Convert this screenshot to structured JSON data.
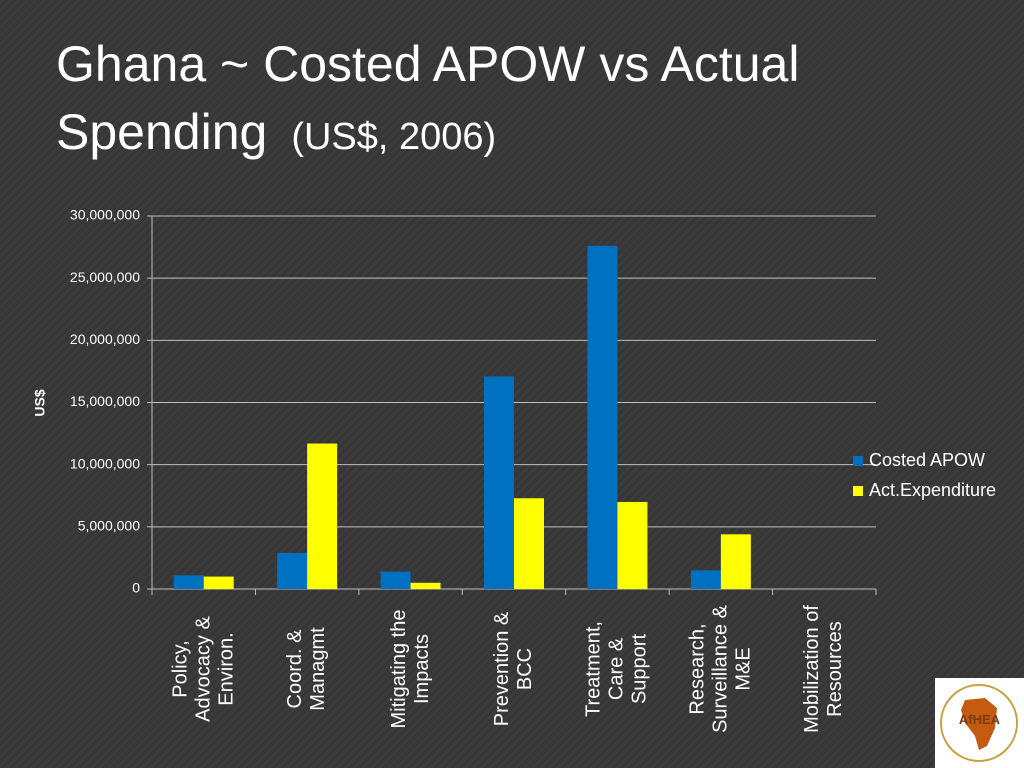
{
  "chart_data": {
    "type": "bar",
    "title": "Ghana ~ Costed APOW vs Actual Spending",
    "subtitle": "(US$, 2006)",
    "y_label": "US$",
    "categories": [
      "Policy, Advocacy & Environ.",
      "Coord. & Managmt",
      "Mitigating the Impacts",
      "Prevention & BCC",
      "Treatment, Care & Support",
      "Research, Surveillance & M&E",
      "Mobilization of Resources"
    ],
    "series": [
      {
        "name": "Costed APOW",
        "color": "#0070c0",
        "values": [
          1100000,
          2900000,
          1400000,
          17100000,
          27600000,
          1500000,
          0
        ]
      },
      {
        "name": "Act.Expenditure",
        "color": "#ffff00",
        "values": [
          1000000,
          11700000,
          500000,
          7300000,
          7000000,
          4400000,
          0
        ]
      }
    ],
    "ylim": [
      0,
      30000000
    ],
    "yticks": [
      0,
      {
        "value": 5000000,
        "label": "5,000,000"
      },
      {
        "value": 10000000,
        "label": "10,000,000"
      },
      {
        "value": 15000000,
        "label": "15,000,000"
      },
      {
        "value": 20000000,
        "label": "20,000,000"
      },
      {
        "value": 25000000,
        "label": "25,000,000"
      },
      {
        "value": 30000000,
        "label": "30,000,000"
      }
    ],
    "grid": true,
    "legend": "right"
  },
  "logo": {
    "text": "AfHEA"
  }
}
